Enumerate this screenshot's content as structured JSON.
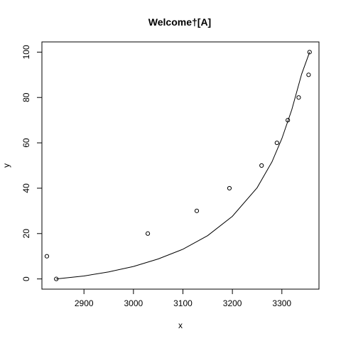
{
  "chart_data": {
    "type": "scatter",
    "title": "Welcome†[A]",
    "xlabel": "x",
    "ylabel": "y",
    "xlim": [
      2815,
      3375
    ],
    "ylim": [
      -4.5,
      104.5
    ],
    "x_ticks": [
      2900,
      3000,
      3100,
      3200,
      3300
    ],
    "y_ticks": [
      0,
      20,
      40,
      60,
      80,
      100
    ],
    "grid": false,
    "legend": "none",
    "series": [
      {
        "kind": "points",
        "x": [
          2825,
          2844,
          3029,
          3128,
          3194,
          3259,
          3290,
          3312,
          3334,
          3354,
          3356
        ],
        "y": [
          10,
          0,
          20,
          30,
          40,
          50,
          60,
          70,
          80,
          90,
          100
        ]
      },
      {
        "kind": "line",
        "x": [
          2844,
          2900,
          2950,
          3000,
          3050,
          3100,
          3150,
          3200,
          3250,
          3280,
          3300,
          3320,
          3340,
          3356
        ],
        "y": [
          0,
          1.3,
          3.1,
          5.5,
          8.8,
          13.1,
          19.1,
          27.6,
          40.2,
          51.6,
          61.9,
          74.6,
          90.3,
          100
        ]
      }
    ]
  }
}
